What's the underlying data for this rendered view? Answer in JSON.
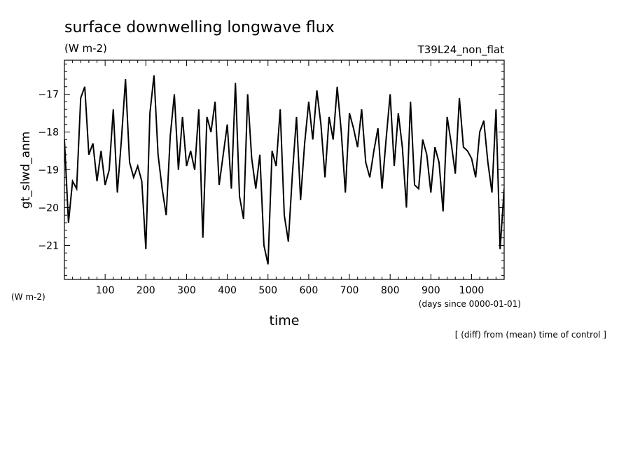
{
  "chart_data": {
    "type": "line",
    "title": "surface downwelling longwave flux",
    "units_top": "(W m-2)",
    "run_label": "T39L24_non_flat",
    "ylabel": "gt_slwd_anm",
    "units_left": "(W m-2)",
    "xlabel": "time",
    "xunits": "(days since 0000-01-01)",
    "note": "[ (diff) from (mean) time of control ]",
    "xlim": [
      0,
      1080
    ],
    "ylim": [
      -21.9,
      -16.1
    ],
    "xticks": [
      100,
      200,
      300,
      400,
      500,
      600,
      700,
      800,
      900,
      1000
    ],
    "yticks": [
      -17,
      -18,
      -19,
      -20,
      -21
    ],
    "grid": false,
    "series": [
      {
        "color": "#000000",
        "x": [
          0,
          10,
          20,
          30,
          40,
          50,
          60,
          70,
          80,
          90,
          100,
          110,
          120,
          130,
          140,
          150,
          160,
          170,
          180,
          190,
          200,
          210,
          220,
          230,
          240,
          250,
          260,
          270,
          280,
          290,
          300,
          310,
          320,
          330,
          340,
          350,
          360,
          370,
          380,
          390,
          400,
          410,
          420,
          430,
          440,
          450,
          460,
          470,
          480,
          490,
          500,
          510,
          520,
          530,
          540,
          550,
          560,
          570,
          580,
          590,
          600,
          610,
          620,
          630,
          640,
          650,
          660,
          670,
          680,
          690,
          700,
          710,
          720,
          730,
          740,
          750,
          760,
          770,
          780,
          790,
          800,
          810,
          820,
          830,
          840,
          850,
          860,
          870,
          880,
          890,
          900,
          910,
          920,
          930,
          940,
          950,
          960,
          970,
          980,
          990,
          1000,
          1010,
          1020,
          1030,
          1040,
          1050,
          1060,
          1070,
          1080
        ],
        "values": [
          -18.2,
          -20.4,
          -19.3,
          -19.5,
          -17.1,
          -16.8,
          -18.6,
          -18.3,
          -19.3,
          -18.5,
          -19.4,
          -19.0,
          -17.4,
          -19.6,
          -18.2,
          -16.6,
          -18.8,
          -19.2,
          -18.9,
          -19.3,
          -21.1,
          -17.5,
          -16.5,
          -18.6,
          -19.5,
          -20.2,
          -18.1,
          -17.0,
          -19.0,
          -17.6,
          -18.9,
          -18.5,
          -19.0,
          -17.4,
          -20.8,
          -17.6,
          -18.0,
          -17.2,
          -19.4,
          -18.6,
          -17.8,
          -19.5,
          -16.7,
          -19.7,
          -20.3,
          -17.0,
          -18.7,
          -19.5,
          -18.6,
          -21.0,
          -21.5,
          -18.5,
          -18.9,
          -17.4,
          -20.2,
          -20.9,
          -19.1,
          -17.6,
          -19.8,
          -18.3,
          -17.2,
          -18.2,
          -16.9,
          -17.8,
          -19.2,
          -17.6,
          -18.2,
          -16.8,
          -18.0,
          -19.6,
          -17.5,
          -17.9,
          -18.4,
          -17.4,
          -18.8,
          -19.2,
          -18.5,
          -17.9,
          -19.5,
          -18.2,
          -17.0,
          -18.9,
          -17.5,
          -18.4,
          -20.0,
          -17.2,
          -19.4,
          -19.5,
          -18.2,
          -18.6,
          -19.6,
          -18.4,
          -18.8,
          -20.1,
          -17.6,
          -18.3,
          -19.1,
          -17.1,
          -18.4,
          -18.5,
          -18.7,
          -19.2,
          -18.0,
          -17.7,
          -18.8,
          -19.6,
          -17.4,
          -21.1,
          -19.5
        ]
      }
    ]
  }
}
